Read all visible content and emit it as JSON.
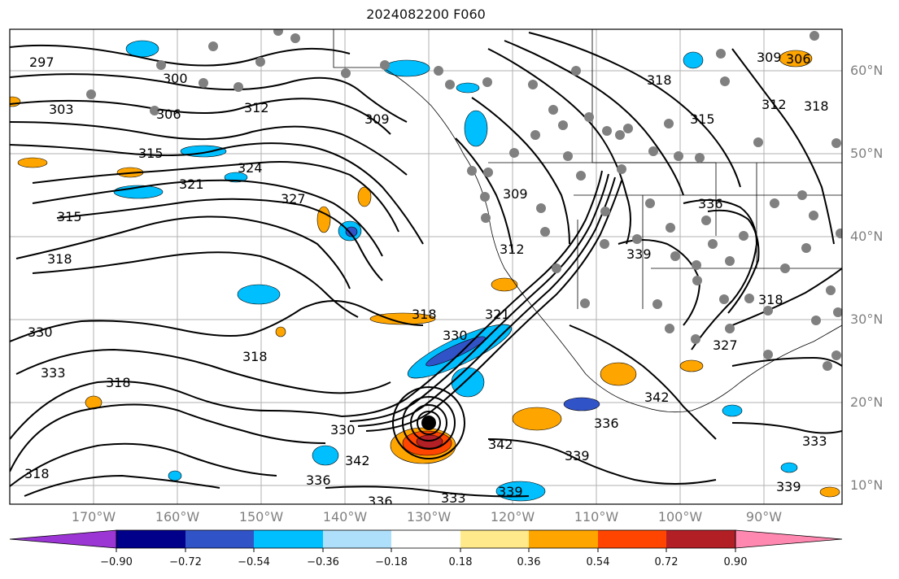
{
  "title": "2024082200 F060",
  "lat_labels": [
    "60°N",
    "50°N",
    "40°N",
    "30°N",
    "20°N",
    "10°N"
  ],
  "lon_labels": [
    "170°W",
    "160°W",
    "150°W",
    "140°W",
    "130°W",
    "120°W",
    "110°W",
    "100°W",
    "90°W"
  ],
  "colorbar": {
    "colors": [
      "#9b35d4",
      "#00008b",
      "#3153c8",
      "#00bfff",
      "#aee0fb",
      "#ffffff",
      "#ffe98a",
      "#ffa500",
      "#ff4500",
      "#b21f24",
      "#ff88b0"
    ],
    "tick_labels": [
      "−0.90",
      "−0.72",
      "−0.54",
      "−0.36",
      "−0.18",
      "0.18",
      "0.36",
      "0.54",
      "0.72",
      "0.90"
    ]
  },
  "contour_labels": [
    "297",
    "300",
    "303",
    "306",
    "312",
    "309",
    "315",
    "321",
    "324",
    "327",
    "315",
    "318",
    "330",
    "333",
    "318",
    "318",
    "318",
    "309",
    "312",
    "318",
    "315",
    "312",
    "318",
    "306",
    "309",
    "336",
    "339",
    "318",
    "327",
    "330",
    "342",
    "342",
    "336",
    "333",
    "336",
    "339",
    "336",
    "339",
    "342",
    "333",
    "339",
    "330",
    "321",
    "318"
  ],
  "cities_note": ""
}
